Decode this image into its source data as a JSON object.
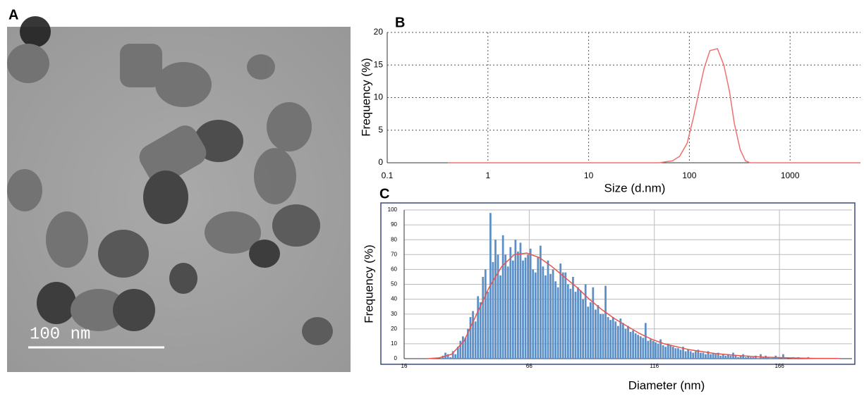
{
  "image_panel": {
    "label": "A",
    "scale_bar": "100 nm"
  },
  "chart_data": [
    {
      "type": "line",
      "panel_label": "B",
      "xlabel": "Size (d.nm)",
      "ylabel": "Frequency (%)",
      "xscale": "log",
      "xlim": [
        0.1,
        5000
      ],
      "xticks": [
        0.1,
        1,
        10,
        100,
        1000
      ],
      "ylim": [
        0,
        20
      ],
      "yticks": [
        0,
        5,
        10,
        15,
        20
      ],
      "grid": true,
      "color": "#f07070",
      "x": [
        0.4,
        1,
        10,
        50,
        68,
        80,
        95,
        110,
        125,
        140,
        160,
        190,
        220,
        250,
        280,
        320,
        360,
        400,
        1000,
        5000
      ],
      "values": [
        0,
        0,
        0,
        0,
        0.3,
        1,
        3,
        7,
        11,
        14.5,
        17.2,
        17.5,
        15,
        11,
        6,
        2,
        0.3,
        0,
        0,
        0
      ]
    },
    {
      "type": "histogram",
      "panel_label": "C",
      "xlabel": "Diameter (nm)",
      "ylabel": "Frequency (%)",
      "xlim": [
        16,
        195
      ],
      "xticks": [
        16,
        66,
        116,
        166
      ],
      "ylim": [
        0,
        100
      ],
      "yticks": [
        0,
        10,
        20,
        30,
        40,
        50,
        60,
        70,
        80,
        90,
        100
      ],
      "grid": true,
      "color": "#5b8fc7",
      "bins": [
        30,
        31,
        32,
        33,
        34,
        35,
        36,
        37,
        38,
        39,
        40,
        41,
        42,
        43,
        44,
        45,
        46,
        47,
        48,
        49,
        50,
        51,
        52,
        53,
        54,
        55,
        56,
        57,
        58,
        59,
        60,
        61,
        62,
        63,
        64,
        65,
        66,
        67,
        68,
        69,
        70,
        71,
        72,
        73,
        74,
        75,
        76,
        77,
        78,
        79,
        80,
        81,
        82,
        83,
        84,
        85,
        86,
        87,
        88,
        89,
        90,
        91,
        92,
        93,
        94,
        95,
        96,
        97,
        98,
        99,
        100,
        101,
        102,
        103,
        104,
        105,
        106,
        107,
        108,
        109,
        110,
        111,
        112,
        113,
        114,
        115,
        116,
        117,
        118,
        119,
        120,
        121,
        122,
        123,
        124,
        125,
        126,
        127,
        128,
        129,
        130,
        131,
        132,
        133,
        134,
        135,
        136,
        137,
        138,
        139,
        140,
        141,
        142,
        143,
        144,
        145,
        146,
        147,
        148,
        149,
        150,
        151,
        152,
        153,
        154,
        155,
        156,
        157,
        158,
        159,
        160,
        161,
        162,
        163,
        164,
        165,
        166,
        167,
        168,
        169,
        170,
        171,
        172,
        173,
        174,
        175,
        176,
        177,
        178,
        179,
        180
      ],
      "counts": [
        0,
        2,
        4,
        3,
        1,
        5,
        3,
        8,
        12,
        15,
        14,
        20,
        28,
        32,
        25,
        42,
        38,
        55,
        60,
        45,
        98,
        65,
        80,
        70,
        56,
        83,
        70,
        62,
        75,
        66,
        80,
        72,
        78,
        66,
        68,
        70,
        74,
        60,
        58,
        68,
        76,
        62,
        56,
        66,
        57,
        60,
        52,
        48,
        64,
        58,
        58,
        50,
        47,
        55,
        45,
        48,
        46,
        40,
        50,
        35,
        38,
        48,
        33,
        36,
        30,
        30,
        49,
        28,
        26,
        28,
        25,
        22,
        27,
        24,
        20,
        22,
        18,
        19,
        17,
        16,
        15,
        14,
        24,
        12,
        13,
        12,
        11,
        10,
        13,
        9,
        8,
        10,
        9,
        8,
        7,
        7,
        6,
        8,
        5,
        6,
        5,
        4,
        5,
        6,
        4,
        4,
        3,
        5,
        3,
        4,
        3,
        4,
        2,
        3,
        2,
        3,
        2,
        4,
        2,
        1,
        2,
        3,
        1,
        2,
        1,
        1,
        2,
        0,
        3,
        1,
        2,
        1,
        0,
        1,
        2,
        1,
        0,
        3,
        1,
        0,
        0,
        1,
        0,
        1,
        0,
        0,
        0,
        1,
        0,
        0
      ],
      "fit": {
        "color": "#e8534f",
        "x": [
          25,
          30,
          35,
          40,
          45,
          50,
          55,
          60,
          65,
          70,
          75,
          80,
          85,
          90,
          95,
          100,
          105,
          110,
          115,
          120,
          130,
          140,
          150,
          160,
          170,
          180,
          190
        ],
        "values": [
          0,
          0.5,
          3,
          12,
          30,
          48,
          62,
          70,
          71,
          68,
          62,
          55,
          48,
          40,
          33,
          27,
          22,
          17,
          13,
          10,
          6,
          3.5,
          2,
          1,
          0.5,
          0.2,
          0.1
        ]
      }
    }
  ]
}
